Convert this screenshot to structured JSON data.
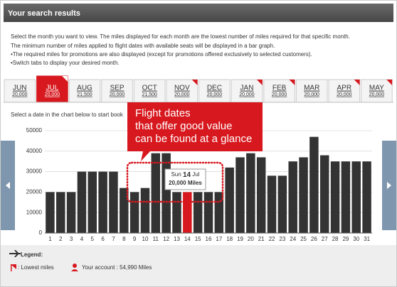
{
  "header": {
    "title": "Your search results"
  },
  "intro": [
    "Select the month you want to view. The miles displayed for each month are the lowest number of miles required for that specific month.",
    "The minimum number of miles applied to flight dates with available seats will be displayed in a bar graph.",
    "•The required miles for promotions are also displayed (except for promotions offered exclusively to selected customers).",
    "•Switch tabs to display your desired month."
  ],
  "tabs": [
    {
      "month": "JUN",
      "miles": "20,000",
      "lowest": false,
      "active": false
    },
    {
      "month": "JUL",
      "miles": "20,000",
      "lowest": true,
      "active": true
    },
    {
      "month": "AUG",
      "miles": "21,500",
      "lowest": false,
      "active": false
    },
    {
      "month": "SEP",
      "miles": "20,000",
      "lowest": false,
      "active": false
    },
    {
      "month": "OCT",
      "miles": "21,500",
      "lowest": false,
      "active": false
    },
    {
      "month": "NOV",
      "miles": "20,000",
      "lowest": true,
      "active": false
    },
    {
      "month": "DEC",
      "miles": "20,000",
      "lowest": false,
      "active": false
    },
    {
      "month": "JAN",
      "miles": "20,000",
      "lowest": true,
      "active": false
    },
    {
      "month": "FEB",
      "miles": "20,000",
      "lowest": true,
      "active": false
    },
    {
      "month": "MAR",
      "miles": "20,000",
      "lowest": false,
      "active": false
    },
    {
      "month": "APR",
      "miles": "20,000",
      "lowest": true,
      "active": false
    },
    {
      "month": "MAY",
      "miles": "20,000",
      "lowest": true,
      "active": false
    }
  ],
  "instruction": "Select a date in the chart below to start book",
  "callout": [
    "Flight dates",
    "that offer good value",
    "can be found at a glance"
  ],
  "tooltip": {
    "weekday": "Sun",
    "day": "14",
    "month": "Jul",
    "miles": "20,000 Miles"
  },
  "chart_data": {
    "type": "bar",
    "categories": [
      "1",
      "2",
      "3",
      "4",
      "5",
      "6",
      "7",
      "8",
      "9",
      "10",
      "11",
      "12",
      "13",
      "14",
      "15",
      "16",
      "17",
      "18",
      "19",
      "20",
      "21",
      "22",
      "23",
      "24",
      "25",
      "26",
      "27",
      "28",
      "29",
      "30",
      "31"
    ],
    "values": [
      20000,
      20000,
      20000,
      30000,
      30000,
      30000,
      30000,
      22000,
      20000,
      22000,
      39000,
      39000,
      20000,
      20000,
      20000,
      20000,
      20000,
      32000,
      37000,
      39000,
      37000,
      28000,
      28000,
      35000,
      37000,
      47000,
      38000,
      35000,
      35000,
      35000,
      35000
    ],
    "color": "#333333",
    "highlight_color": "#d7191f",
    "ylim": [
      0,
      50000
    ],
    "yticks": [
      0,
      10000,
      20000,
      30000,
      40000,
      50000
    ],
    "grid": true
  },
  "legend": {
    "title": "Legend:",
    "lowest": ": Lowest miles",
    "account": "Your account : 54,990 Miles"
  }
}
